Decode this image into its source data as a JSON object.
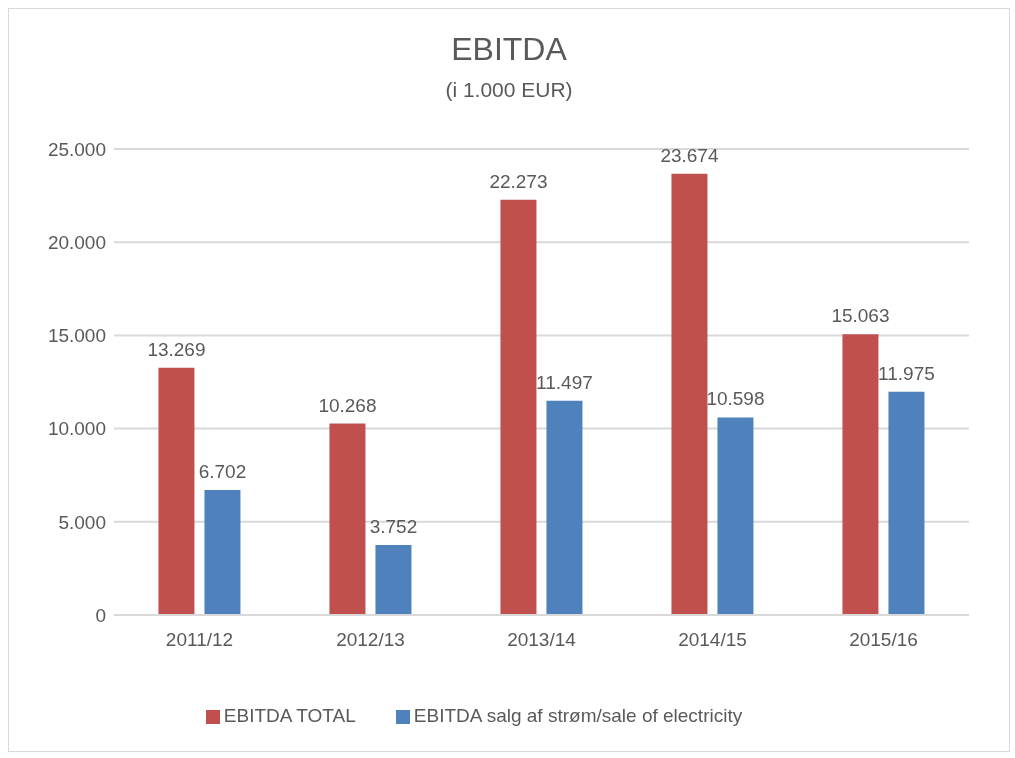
{
  "chart_data": {
    "type": "bar",
    "title": "EBITDA",
    "subtitle": "(i 1.000 EUR)",
    "categories": [
      "2011/12",
      "2012/13",
      "2013/14",
      "2014/15",
      "2015/16"
    ],
    "series": [
      {
        "name": "EBITDA TOTAL",
        "color": "#c0504d",
        "values": [
          13269,
          10268,
          22273,
          23674,
          15063
        ],
        "value_labels": [
          "13.269",
          "10.268",
          "22.273",
          "23.674",
          "15.063"
        ]
      },
      {
        "name": "EBITDA salg af strøm/sale of electricity",
        "color": "#4f81bd",
        "values": [
          6702,
          3752,
          11497,
          10598,
          11975
        ],
        "value_labels": [
          "6.702",
          "3.752",
          "11.497",
          "10.598",
          "11.975"
        ]
      }
    ],
    "ylim": [
      0,
      25000
    ],
    "yticks": [
      {
        "value": 0,
        "label": "0"
      },
      {
        "value": 5000,
        "label": "5.000"
      },
      {
        "value": 10000,
        "label": "10.000"
      },
      {
        "value": 15000,
        "label": "15.000"
      },
      {
        "value": 20000,
        "label": "20.000"
      },
      {
        "value": 25000,
        "label": "25.000"
      }
    ],
    "grid": "y",
    "legend": "bottom"
  }
}
